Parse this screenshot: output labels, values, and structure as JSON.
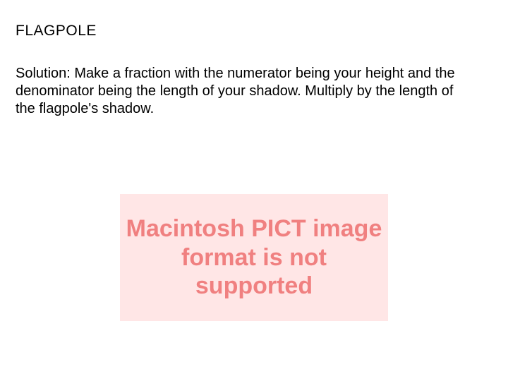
{
  "title": "FLAGPOLE",
  "solution": "Solution: Make a fraction with the numerator being your height and the denominator being the length of your shadow.  Multiply by the length of the flagpole's shadow.",
  "errorMessage": "Macintosh PICT image format is not supported",
  "colors": {
    "background": "#ffffff",
    "text": "#000000",
    "errorBg": "#ffe6e6",
    "errorText": "#f08080"
  },
  "typography": {
    "titleFontSize": 21,
    "bodyFontSize": 20,
    "errorFontSize": 34
  }
}
